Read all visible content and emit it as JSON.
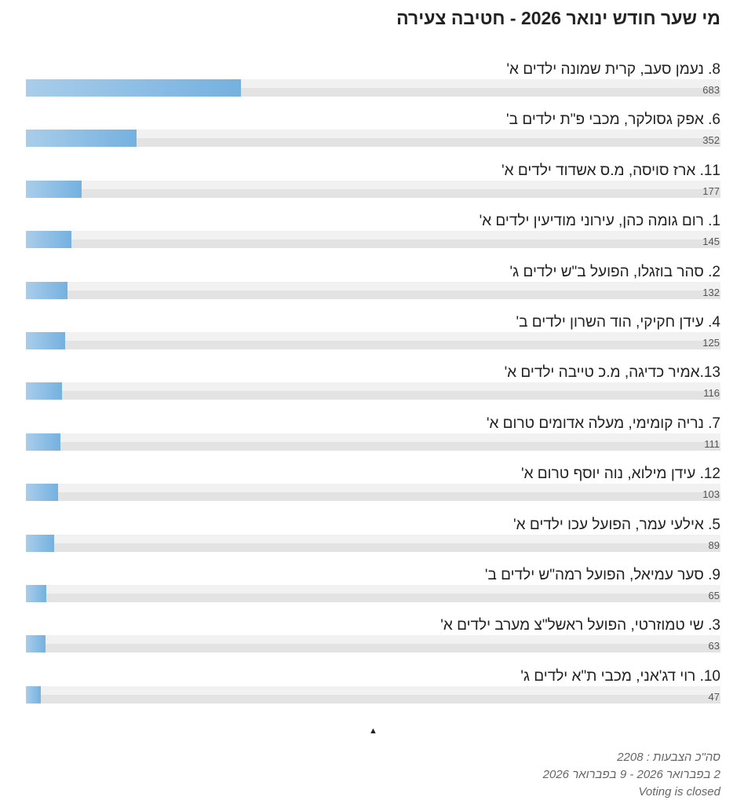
{
  "poll": {
    "title": "מי שער חודש ינואר 2026 - חטיבה צעירה",
    "bar_colors": {
      "start": "#a9cdea",
      "end": "#74b1e0",
      "track": "#e6e6e6"
    },
    "total_votes": 2208,
    "options": [
      {
        "label": "8. נעמן סעב, קרית שמונה ילדים א'",
        "votes": 683
      },
      {
        "label": "6. אפק גסולקר, מכבי פ\"ת ילדים ב'",
        "votes": 352
      },
      {
        "label": "11. ארז סויסה, מ.ס אשדוד ילדים א'",
        "votes": 177
      },
      {
        "label": "1. רום גומה כהן, עירוני מודיעין ילדים א'",
        "votes": 145
      },
      {
        "label": "2. סהר בוזגלו, הפועל ב\"ש ילדים ג'",
        "votes": 132
      },
      {
        "label": "4. עידן חקיקי, הוד השרון ילדים ב'",
        "votes": 125
      },
      {
        "label": "13.אמיר כדיגה, מ.כ טייבה ילדים א'",
        "votes": 116
      },
      {
        "label": "7. נריה קומימי, מעלה אדומים טרום א'",
        "votes": 111
      },
      {
        "label": "12. עידן מילוא, נוה יוסף טרום א'",
        "votes": 103
      },
      {
        "label": "5. אילעי עמר, הפועל עכו ילדים א'",
        "votes": 89
      },
      {
        "label": "9. סער עמיאל, הפועל רמה\"ש ילדים ב'",
        "votes": 65
      },
      {
        "label": "3. שי טמוזרטי, הפועל ראשל\"צ מערב ילדים א'",
        "votes": 63
      },
      {
        "label": "10. רוי דג'אני, מכבי ת\"א ילדים ג'",
        "votes": 47
      }
    ],
    "toggle_icon": "triangle-up-icon",
    "toggle_glyph": "▲",
    "footer": {
      "total_text": "סה\"כ הצבעות : 2208",
      "date_range": "2 בפברואר 2026 - 9 בפברואר 2026",
      "status": "Voting is closed"
    }
  }
}
